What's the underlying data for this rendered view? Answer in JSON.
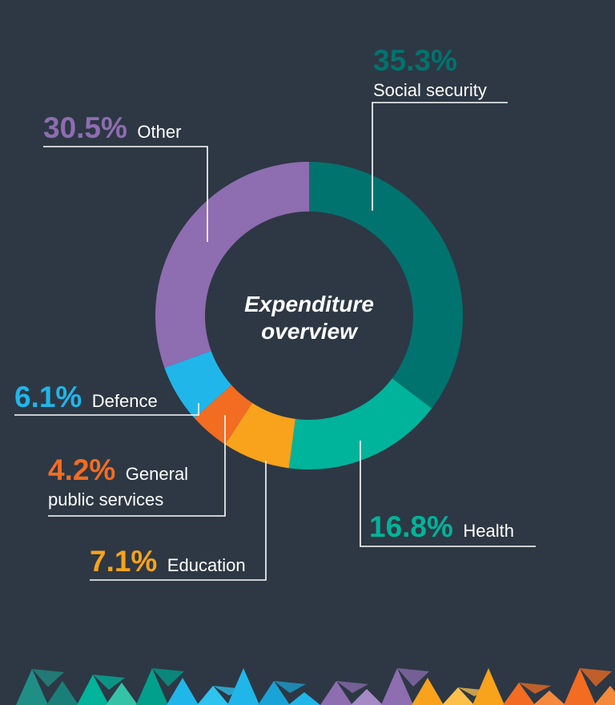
{
  "colors": {
    "background": "#2d3844",
    "social_security": "#00736f",
    "health": "#00b39b",
    "education": "#f9a21b",
    "general_public_services": "#f26c22",
    "defence": "#20b6ea",
    "other": "#8e6db1",
    "leader": "#ffffff"
  },
  "chart_data": {
    "type": "pie",
    "donut": true,
    "center_title": [
      "Expenditure",
      "overview"
    ],
    "unit": "%",
    "slices": [
      {
        "name": "Social security",
        "value": 35.3,
        "label": "35.3%",
        "color": "#00736f"
      },
      {
        "name": "Health",
        "value": 16.8,
        "label": "16.8%",
        "color": "#00b39b"
      },
      {
        "name": "Education",
        "value": 7.1,
        "label": "7.1%",
        "color": "#f9a21b"
      },
      {
        "name": "General public services",
        "value": 4.2,
        "label": "4.2%",
        "color": "#f26c22"
      },
      {
        "name": "Defence",
        "value": 6.1,
        "label": "6.1%",
        "color": "#20b6ea"
      },
      {
        "name": "Other",
        "value": 30.5,
        "label": "30.5%",
        "color": "#8e6db1"
      }
    ]
  },
  "decor": {
    "footer_pattern": "triangle-mosaic",
    "footer_colors": [
      "#1f8f86",
      "#00b39b",
      "#35c3a8",
      "#20b6ea",
      "#8e6db1",
      "#a58ac6",
      "#f9a21b",
      "#ffc04a",
      "#f26c22",
      "#f58a3c"
    ]
  }
}
